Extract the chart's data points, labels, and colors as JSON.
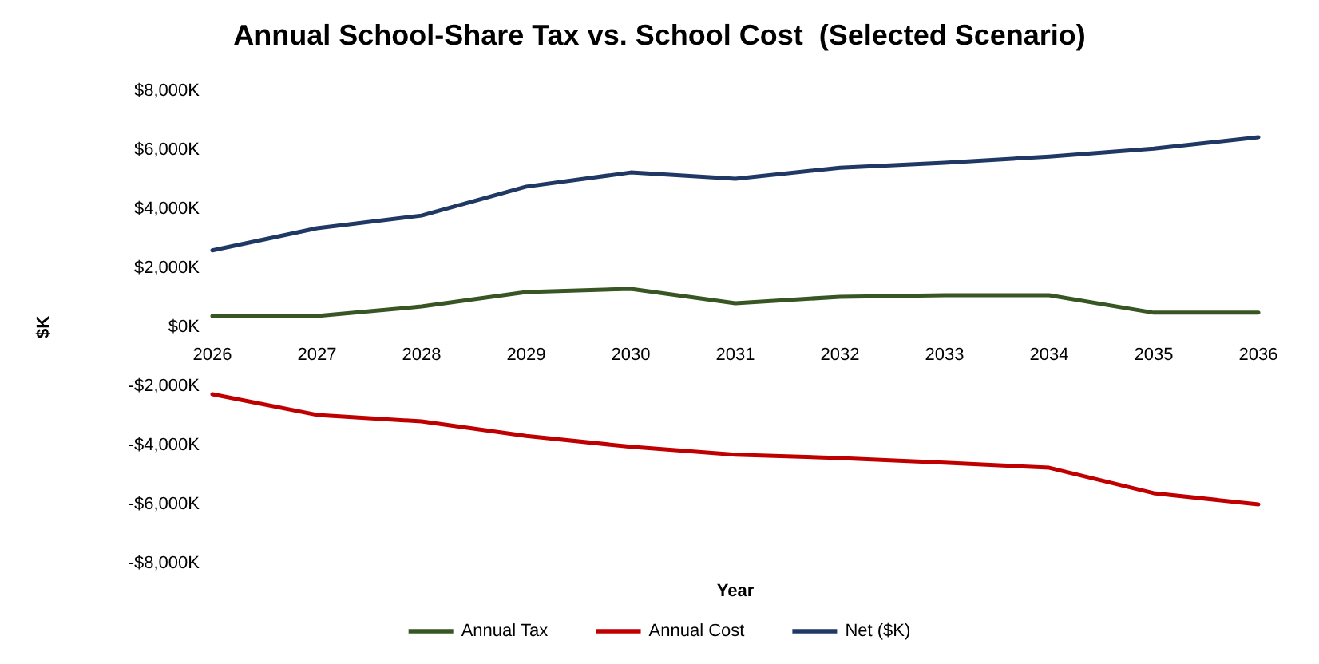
{
  "chart_data": {
    "type": "line",
    "title": "Annual School-Share Tax vs. School Cost  (Selected Scenario)",
    "xlabel": "Year",
    "ylabel": "$K",
    "categories": [
      "2026",
      "2027",
      "2028",
      "2029",
      "2030",
      "2031",
      "2032",
      "2033",
      "2034",
      "2035",
      "2036"
    ],
    "series": [
      {
        "name": "Annual Tax",
        "color": "#375623",
        "values": [
          380,
          380,
          700,
          1190,
          1300,
          810,
          1030,
          1080,
          1080,
          490,
          490
        ]
      },
      {
        "name": "Annual Cost",
        "color": "#c00000",
        "values": [
          -2270,
          -2970,
          -3190,
          -3680,
          -4050,
          -4320,
          -4430,
          -4590,
          -4760,
          -5620,
          -6000
        ]
      },
      {
        "name": "Net ($K)",
        "color": "#1f3864",
        "values": [
          2600,
          3350,
          3780,
          4760,
          5240,
          5030,
          5400,
          5570,
          5780,
          6050,
          6430
        ]
      }
    ],
    "ylim": [
      -8000,
      8000
    ],
    "yticks": [
      {
        "value": -8000,
        "label": "-$8,000K"
      },
      {
        "value": -6000,
        "label": "-$6,000K"
      },
      {
        "value": -4000,
        "label": "-$4,000K"
      },
      {
        "value": -2000,
        "label": "-$2,000K"
      },
      {
        "value": 0,
        "label": "$0K"
      },
      {
        "value": 2000,
        "label": "$2,000K"
      },
      {
        "value": 4000,
        "label": "$4,000K"
      },
      {
        "value": 6000,
        "label": "$6,000K"
      },
      {
        "value": 8000,
        "label": "$8,000K"
      }
    ],
    "grid": false,
    "legend": "bottom",
    "marker": "none",
    "line_style": "solid"
  }
}
